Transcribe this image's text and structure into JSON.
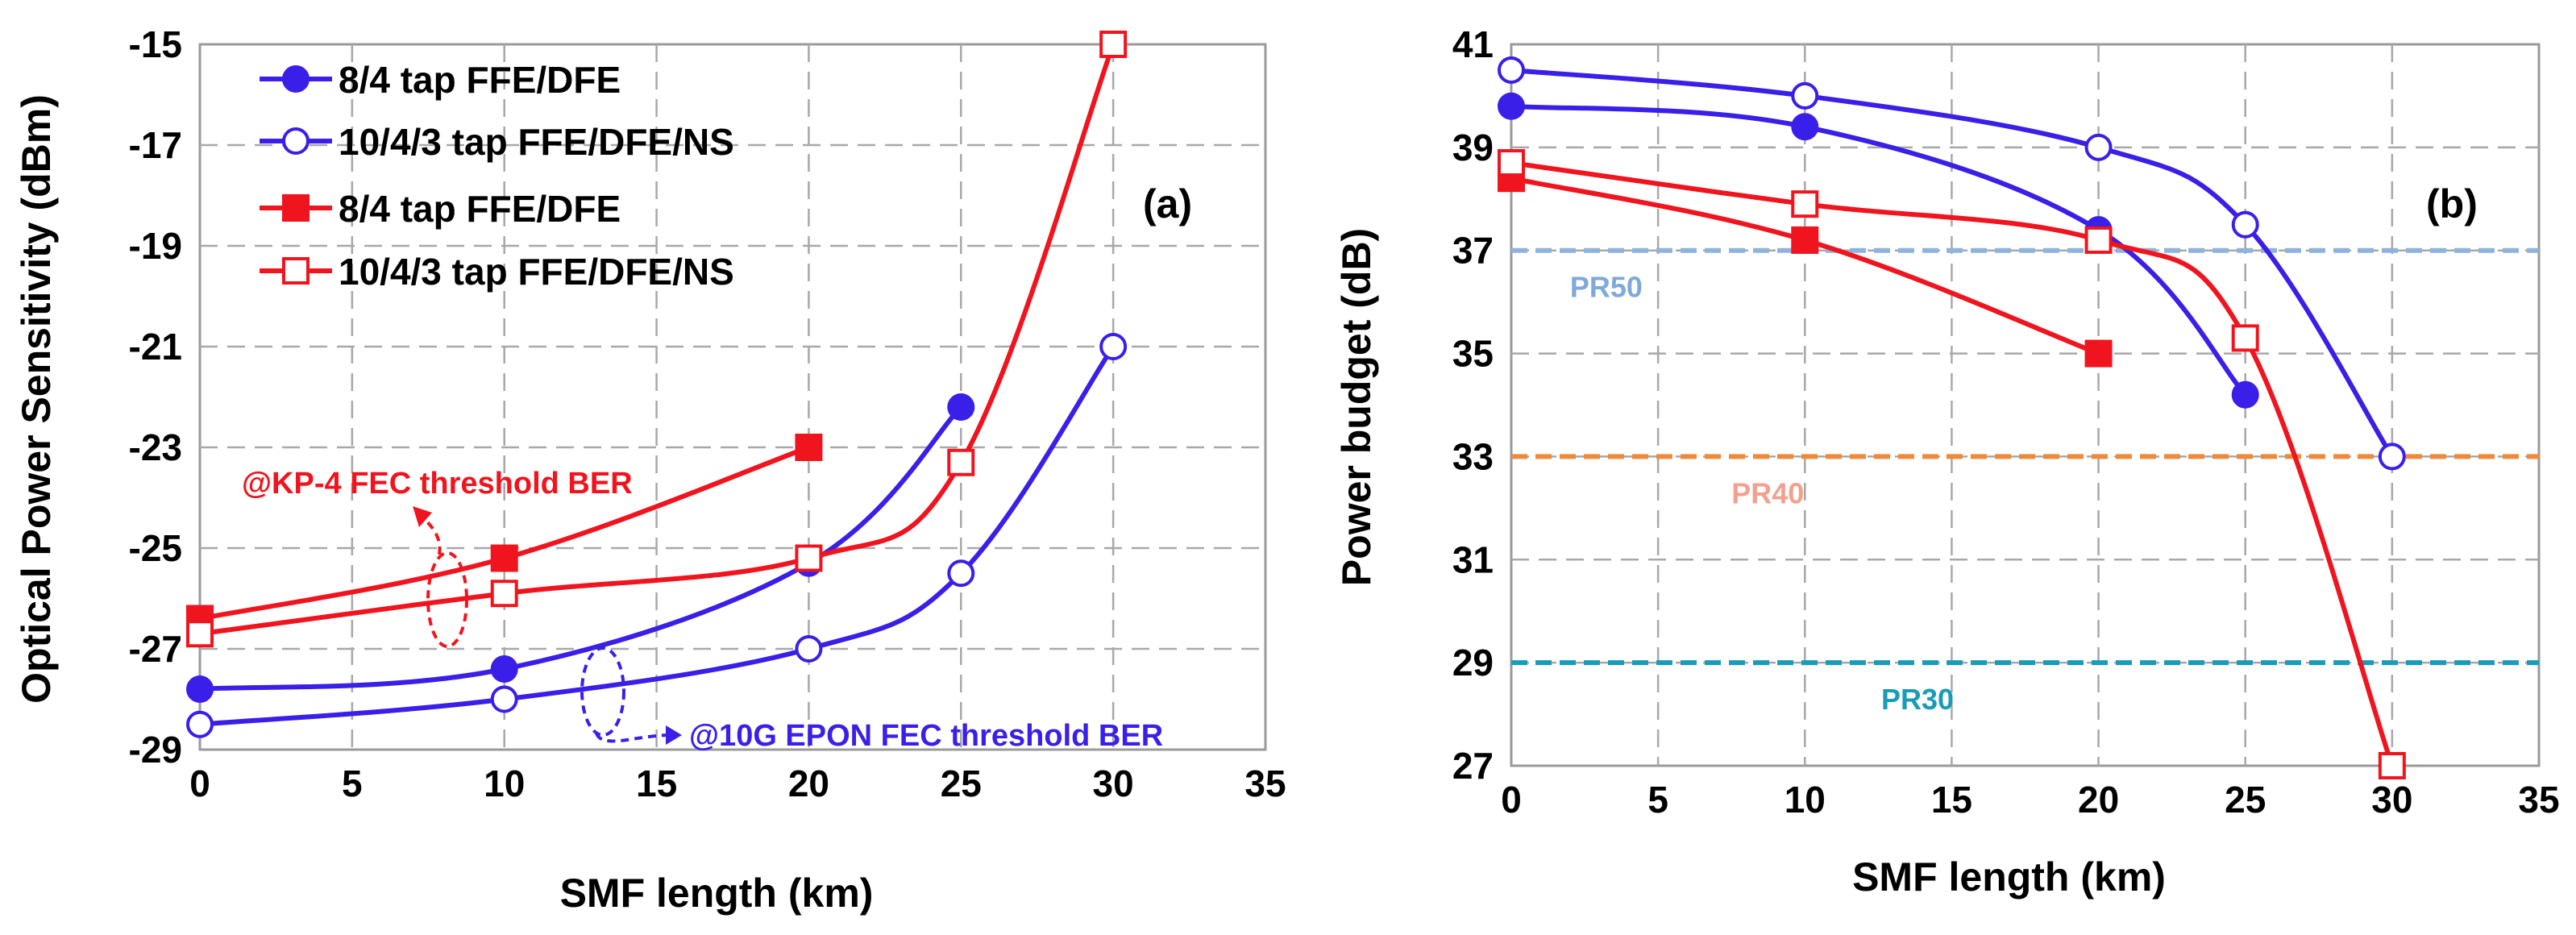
{
  "chart_data": [
    {
      "type": "line",
      "panel_label": "(a)",
      "xlabel": "SMF length (km)",
      "ylabel": "Optical Power Sensitivity (dBm)",
      "xlim": [
        0,
        35
      ],
      "ylim": [
        -29,
        -15
      ],
      "xticks": [
        "0",
        "5",
        "10",
        "15",
        "20",
        "25",
        "30",
        "35"
      ],
      "yticks": [
        "-29",
        "-27",
        "-25",
        "-23",
        "-21",
        "-19",
        "-17",
        "-15"
      ],
      "grid": true,
      "legend_position": "top-left",
      "series": [
        {
          "name": "8/4 tap FFE/DFE",
          "color": "#3a1fe8",
          "marker": "circle-filled",
          "x": [
            0,
            10,
            20,
            25
          ],
          "y": [
            -27.8,
            -27.4,
            -25.3,
            -22.2
          ]
        },
        {
          "name": "10/4/3 tap FFE/DFE/NS",
          "color": "#3a1fe8",
          "marker": "circle-open",
          "x": [
            0,
            10,
            20,
            25,
            30
          ],
          "y": [
            -28.5,
            -28.0,
            -27.0,
            -25.5,
            -21.0
          ]
        },
        {
          "name": "8/4 tap FFE/DFE",
          "color": "#f0141e",
          "marker": "square-filled",
          "x": [
            0,
            10,
            20
          ],
          "y": [
            -26.4,
            -25.2,
            -23.0
          ]
        },
        {
          "name": "10/4/3 tap FFE/DFE/NS",
          "color": "#f0141e",
          "marker": "square-open",
          "x": [
            0,
            10,
            20,
            25,
            30
          ],
          "y": [
            -26.7,
            -25.9,
            -25.2,
            -23.3,
            -15.0
          ]
        }
      ],
      "annotations": [
        {
          "text": "@KP-4 FEC threshold BER",
          "color": "#f0141e"
        },
        {
          "text": "@10G EPON FEC threshold BER",
          "color": "#3a1fe8"
        }
      ]
    },
    {
      "type": "line",
      "panel_label": "(b)",
      "xlabel": "SMF length (km)",
      "ylabel": "Power budget (dB)",
      "xlim": [
        0,
        35
      ],
      "ylim": [
        27,
        41
      ],
      "xticks": [
        "0",
        "5",
        "10",
        "15",
        "20",
        "25",
        "30",
        "35"
      ],
      "yticks": [
        "27",
        "29",
        "31",
        "33",
        "35",
        "37",
        "39",
        "41"
      ],
      "grid": true,
      "series": [
        {
          "color": "#3a1fe8",
          "marker": "circle-filled",
          "x": [
            0,
            10,
            20,
            25
          ],
          "y": [
            39.8,
            39.4,
            37.4,
            34.2
          ]
        },
        {
          "color": "#3a1fe8",
          "marker": "circle-open",
          "x": [
            0,
            10,
            20,
            25,
            30
          ],
          "y": [
            40.5,
            40.0,
            39.0,
            37.5,
            33.0
          ]
        },
        {
          "color": "#f0141e",
          "marker": "square-filled",
          "x": [
            0,
            10,
            20
          ],
          "y": [
            38.4,
            37.2,
            35.0
          ]
        },
        {
          "color": "#f0141e",
          "marker": "square-open",
          "x": [
            0,
            10,
            20,
            25,
            30
          ],
          "y": [
            38.7,
            37.9,
            37.2,
            35.3,
            27.0
          ]
        }
      ],
      "reference_lines": [
        {
          "label": "PR50",
          "y": 37,
          "color": "#8fb4dc",
          "label_color": "#7fa9d9"
        },
        {
          "label": "PR40",
          "y": 33,
          "color": "#ee8a3a",
          "label_color": "#f2a08f"
        },
        {
          "label": "PR30",
          "y": 29,
          "color": "#1a9bb8",
          "label_color": "#1a9bb8"
        }
      ]
    }
  ]
}
